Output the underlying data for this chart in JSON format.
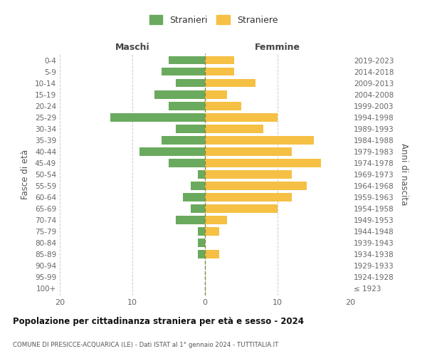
{
  "age_groups": [
    "100+",
    "95-99",
    "90-94",
    "85-89",
    "80-84",
    "75-79",
    "70-74",
    "65-69",
    "60-64",
    "55-59",
    "50-54",
    "45-49",
    "40-44",
    "35-39",
    "30-34",
    "25-29",
    "20-24",
    "15-19",
    "10-14",
    "5-9",
    "0-4"
  ],
  "birth_years": [
    "≤ 1923",
    "1924-1928",
    "1929-1933",
    "1934-1938",
    "1939-1943",
    "1944-1948",
    "1949-1953",
    "1954-1958",
    "1959-1963",
    "1964-1968",
    "1969-1973",
    "1974-1978",
    "1979-1983",
    "1984-1988",
    "1989-1993",
    "1994-1998",
    "1999-2003",
    "2004-2008",
    "2009-2013",
    "2014-2018",
    "2019-2023"
  ],
  "males": [
    0,
    0,
    0,
    1,
    1,
    1,
    4,
    2,
    3,
    2,
    1,
    5,
    9,
    6,
    4,
    13,
    5,
    7,
    4,
    6,
    5
  ],
  "females": [
    0,
    0,
    0,
    2,
    0,
    2,
    3,
    10,
    12,
    14,
    12,
    16,
    12,
    15,
    8,
    10,
    5,
    3,
    7,
    4,
    4
  ],
  "male_color": "#6aaa5e",
  "female_color": "#f5c043",
  "male_label": "Stranieri",
  "female_label": "Straniere",
  "xlim": 20,
  "title": "Popolazione per cittadinanza straniera per età e sesso - 2024",
  "subtitle": "COMUNE DI PRESICCE-ACQUARICA (LE) - Dati ISTAT al 1° gennaio 2024 - TUTTITALIA.IT",
  "left_header": "Maschi",
  "right_header": "Femmine",
  "ylabel_left": "Fasce di età",
  "ylabel_right": "Anni di nascita",
  "background_color": "#ffffff",
  "grid_color": "#cccccc",
  "center_line_color": "#888844"
}
